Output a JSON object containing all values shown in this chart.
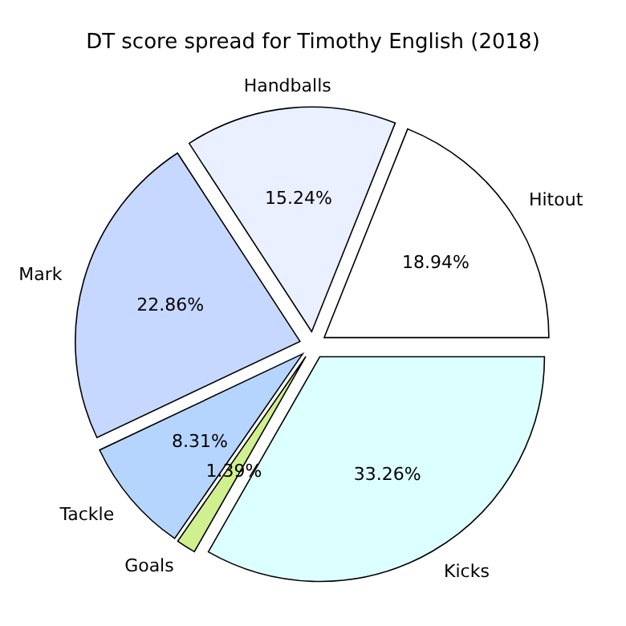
{
  "chart_data": {
    "type": "pie",
    "title": "DT score spread for Timothy English (2018)",
    "categories": [
      "Hitout",
      "Handballs",
      "Mark",
      "Tackle",
      "Goals",
      "Kicks"
    ],
    "values": [
      18.94,
      15.24,
      22.86,
      8.31,
      1.39,
      33.26
    ],
    "colors": [
      "#ffffff",
      "#eaf0ff",
      "#c6d8ff",
      "#b5d5ff",
      "#d0f090",
      "#dcffff"
    ],
    "value_labels": [
      "18.94%",
      "15.24%",
      "22.86%",
      "8.31%",
      "1.39%",
      "33.26%"
    ]
  }
}
